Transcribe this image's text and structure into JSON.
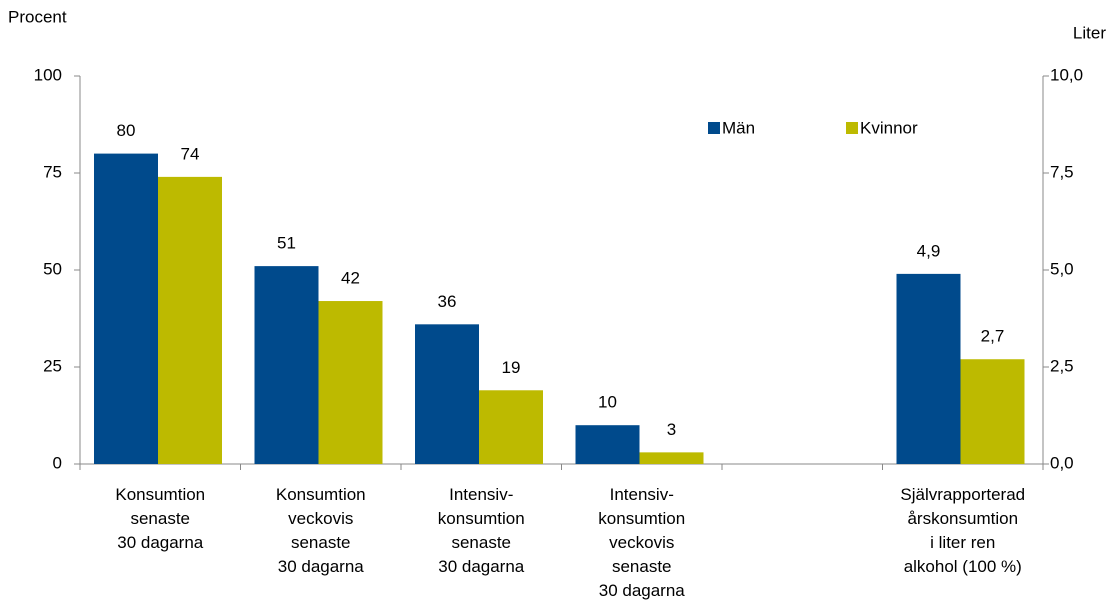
{
  "chart_data": {
    "type": "bar",
    "y_label": "Procent",
    "y2_label": "Liter",
    "categories": [
      "Konsumtion\nsenaste\n30 dagarna",
      "Konsumtion\nveckovis\nsenaste\n30 dagarna",
      "Intensiv-\nkonsumtion\nsenaste\n30 dagarna",
      "Intensiv-\nkonsumtion\nveckovis\nsenaste\n30 dagarna",
      null,
      "Självrapporterad\nårskonsumtion\ni liter ren\nalkohol (100 %)"
    ],
    "series": [
      {
        "name": "Män",
        "color": "#004a8c",
        "values": [
          80,
          51,
          36,
          10,
          null,
          null
        ],
        "y2_values": [
          null,
          null,
          null,
          null,
          null,
          4.9
        ],
        "y2_value_labels": [
          null,
          null,
          null,
          null,
          null,
          "4,9"
        ]
      },
      {
        "name": "Kvinnor",
        "color": "#bdba00",
        "values": [
          74,
          42,
          19,
          3,
          null,
          null
        ],
        "y2_values": [
          null,
          null,
          null,
          null,
          null,
          2.7
        ],
        "y2_value_labels": [
          null,
          null,
          null,
          null,
          null,
          "2,7"
        ]
      }
    ],
    "ylim": [
      0,
      100
    ],
    "yticks": [
      0,
      25,
      50,
      75,
      100
    ],
    "y2lim": [
      0,
      10
    ],
    "y2ticks": [
      {
        "value": 0,
        "label": "0,0"
      },
      {
        "value": 2.5,
        "label": "2,5"
      },
      {
        "value": 5,
        "label": "5,0"
      },
      {
        "value": 7.5,
        "label": "7,5"
      },
      {
        "value": 10,
        "label": "10,0"
      }
    ],
    "legend": "top-right"
  }
}
